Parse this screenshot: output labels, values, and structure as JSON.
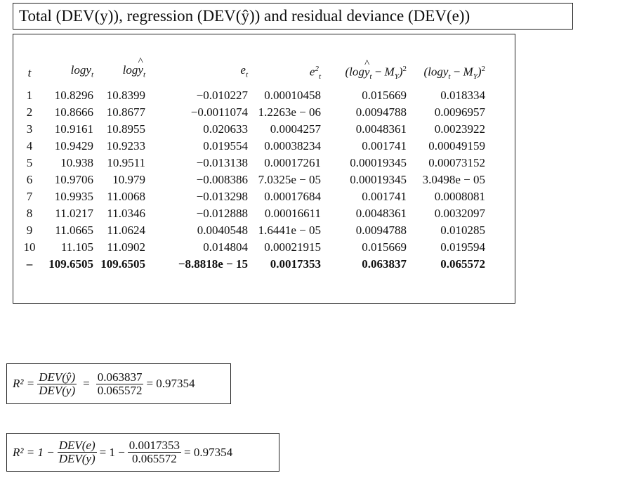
{
  "title": {
    "text": "Total (DEV(y)), regression (DEV(ŷ)) and residual deviance (DEV(e))"
  },
  "table": {
    "headers": [
      "t",
      "logy_t",
      "logŷ_t",
      "e_t",
      "e_t^2",
      "(logŷ_t − M_Y)^2",
      "(logy_t − M_Y)^2"
    ],
    "rows": [
      [
        "1",
        "10.8296",
        "10.8399",
        "−0.010227",
        "0.00010458",
        "0.015669",
        "0.018334"
      ],
      [
        "2",
        "10.8666",
        "10.8677",
        "−0.0011074",
        "1.2263e − 06",
        "0.0094788",
        "0.0096957"
      ],
      [
        "3",
        "10.9161",
        "10.8955",
        "0.020633",
        "0.0004257",
        "0.0048361",
        "0.0023922"
      ],
      [
        "4",
        "10.9429",
        "10.9233",
        "0.019554",
        "0.00038234",
        "0.001741",
        "0.00049159"
      ],
      [
        "5",
        "10.938",
        "10.9511",
        "−0.013138",
        "0.00017261",
        "0.00019345",
        "0.00073152"
      ],
      [
        "6",
        "10.9706",
        "10.979",
        "−0.008386",
        "7.0325e − 05",
        "0.00019345",
        "3.0498e − 05"
      ],
      [
        "7",
        "10.9935",
        "11.0068",
        "−0.013298",
        "0.00017684",
        "0.001741",
        "0.0008081"
      ],
      [
        "8",
        "11.0217",
        "11.0346",
        "−0.012888",
        "0.00016611",
        "0.0048361",
        "0.0032097"
      ],
      [
        "9",
        "11.0665",
        "11.0624",
        "0.0040548",
        "1.6441e − 05",
        "0.0094788",
        "0.010285"
      ],
      [
        "10",
        "11.105",
        "11.0902",
        "0.014804",
        "0.00021915",
        "0.015669",
        "0.019594"
      ]
    ],
    "total_row": [
      "–",
      "109.6505",
      "109.6505",
      "−8.8818e − 15",
      "0.0017353",
      "0.063837",
      "0.065572"
    ]
  },
  "formula1": {
    "lhs": "R² =",
    "num1": "DEV(ŷ)",
    "den1": "DEV(y)",
    "num2": "0.063837",
    "den2": "0.065572",
    "result": "= 0.97354"
  },
  "formula2": {
    "lhs": "R² = 1 −",
    "num1": "DEV(e)",
    "den1": "DEV(y)",
    "mid": "= 1 −",
    "num2": "0.0017353",
    "den2": "0.065572",
    "result": "= 0.97354"
  }
}
